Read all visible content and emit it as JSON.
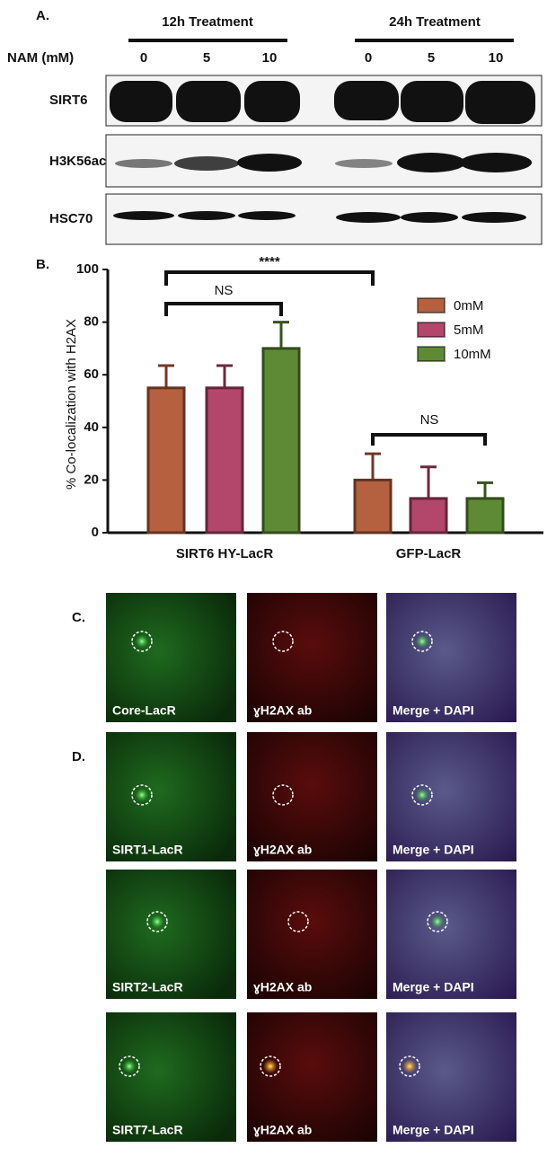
{
  "panel_a": {
    "label": "A.",
    "treatments": [
      "12h Treatment",
      "24h Treatment"
    ],
    "row_label": "NAM (mM)",
    "doses": [
      "0",
      "5",
      "10",
      "0",
      "5",
      "10"
    ],
    "blots": [
      "SIRT6",
      "H3K56ac",
      "HSC70"
    ]
  },
  "chart_data": {
    "type": "bar",
    "label": "B.",
    "ylabel": "% Co-localization with  H2AX",
    "categories": [
      "SIRT6 HY-LacR",
      "GFP-LacR"
    ],
    "series": [
      {
        "name": "0mM",
        "color": "#b5603f",
        "values": [
          55,
          20
        ],
        "errors": [
          8.5,
          10
        ]
      },
      {
        "name": "5mM",
        "color": "#b3466b",
        "values": [
          55,
          13
        ],
        "errors": [
          8.5,
          12
        ]
      },
      {
        "name": "10mM",
        "color": "#5e8a35",
        "values": [
          70,
          13
        ],
        "errors": [
          10,
          6
        ]
      }
    ],
    "ylim": [
      0,
      100
    ],
    "yticks": [
      0,
      20,
      40,
      60,
      80,
      100
    ],
    "annotations": [
      "****",
      "NS",
      "NS"
    ]
  },
  "panel_c": {
    "label": "C.",
    "images": [
      "Core-LacR",
      "ɣH2AX ab",
      "Merge + DAPI"
    ]
  },
  "panel_d": {
    "label": "D.",
    "rows": [
      [
        "SIRT1-LacR",
        "ɣH2AX ab",
        "Merge + DAPI"
      ],
      [
        "SIRT2-LacR",
        "ɣH2AX ab",
        "Merge + DAPI"
      ],
      [
        "SIRT7-LacR",
        "ɣH2AX ab",
        "Merge + DAPI"
      ]
    ]
  }
}
